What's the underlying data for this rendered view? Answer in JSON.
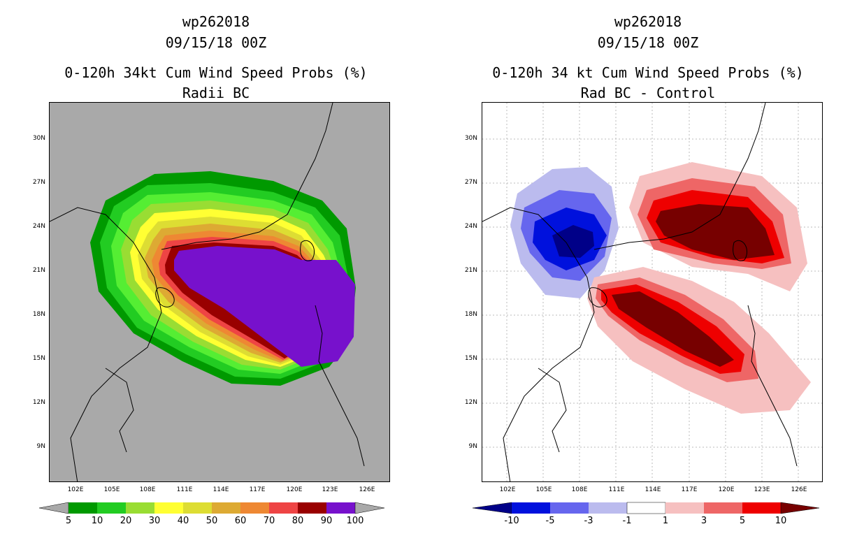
{
  "left_panel": {
    "storm_id": "wp262018",
    "datetime": "09/15/18 00Z",
    "product_title": "0-120h 34kt Cum Wind Speed Probs (%)",
    "subtitle": "Radii BC",
    "colorbar": {
      "labels": [
        "5",
        "10",
        "20",
        "30",
        "40",
        "50",
        "60",
        "70",
        "80",
        "90",
        "100"
      ],
      "colors": [
        "#009900",
        "#22cc22",
        "#55ee33",
        "#99dd33",
        "#ffff33",
        "#dddd33",
        "#ddaa33",
        "#ee8833",
        "#ee4444",
        "#990000",
        "#7711cc"
      ]
    }
  },
  "right_panel": {
    "storm_id": "wp262018",
    "datetime": "09/15/18 00Z",
    "product_title": "0-120h 34 kt Cum Wind Speed Probs (%)",
    "subtitle": "Rad BC - Control",
    "colorbar": {
      "labels": [
        "-10",
        "-5",
        "-3",
        "-1",
        "1",
        "3",
        "5",
        "10"
      ],
      "colors": [
        "#000088",
        "#0011dd",
        "#6666ee",
        "#bbbbee",
        "#ffffff",
        "#f6c0c0",
        "#ee6666",
        "#ee0000",
        "#770000"
      ]
    }
  },
  "axes": {
    "lat_labels": [
      "30N",
      "27N",
      "24N",
      "21N",
      "18N",
      "15N",
      "12N",
      "9N"
    ],
    "lon_labels": [
      "102E",
      "105E",
      "108E",
      "111E",
      "114E",
      "117E",
      "120E",
      "123E",
      "126E"
    ]
  }
}
